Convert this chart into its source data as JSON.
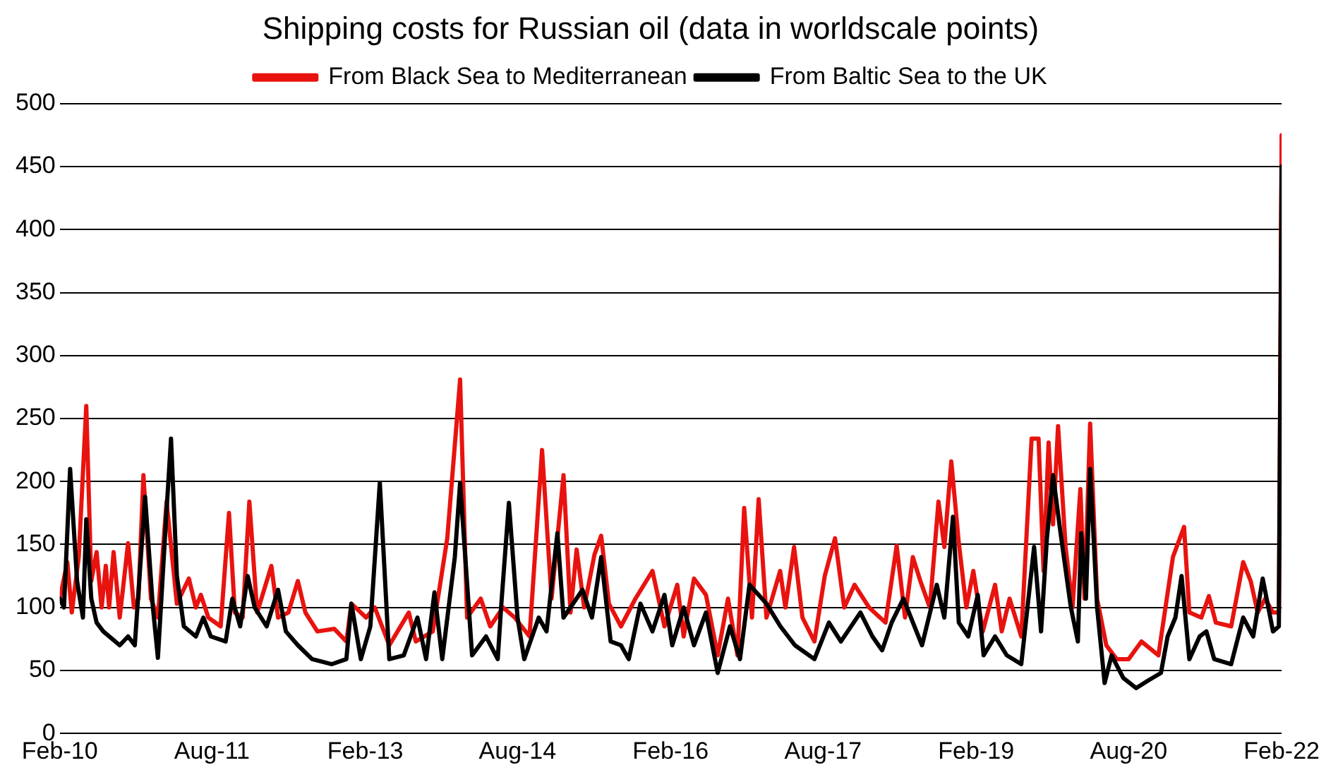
{
  "chart_data": {
    "type": "line",
    "title": "Shipping costs for Russian oil (data in worldscale points)",
    "xlim": [
      "2010-02-01",
      "2022-02-01"
    ],
    "xticks": [
      {
        "value": "2010-02-01",
        "label": "Feb-10"
      },
      {
        "value": "2011-08-01",
        "label": "Aug-11"
      },
      {
        "value": "2013-02-01",
        "label": "Feb-13"
      },
      {
        "value": "2014-08-01",
        "label": "Aug-14"
      },
      {
        "value": "2016-02-01",
        "label": "Feb-16"
      },
      {
        "value": "2017-08-01",
        "label": "Aug-17"
      },
      {
        "value": "2019-02-01",
        "label": "Feb-19"
      },
      {
        "value": "2020-08-01",
        "label": "Aug-20"
      },
      {
        "value": "2022-02-01",
        "label": "Feb-22"
      }
    ],
    "ylim": [
      0,
      500
    ],
    "yticks": [
      0,
      50,
      100,
      150,
      200,
      250,
      300,
      350,
      400,
      450,
      500
    ],
    "grid": "y",
    "legend": "top",
    "marker": "none",
    "line_style": "solid",
    "series": [
      {
        "name": "From Black Sea to Mediterranean",
        "color": "#e8130f",
        "x": [
          "2010-02-01",
          "2010-02-28",
          "2010-03-16",
          "2010-04-10",
          "2010-05-07",
          "2010-05-25",
          "2010-06-13",
          "2010-07-01",
          "2010-07-16",
          "2010-07-28",
          "2010-08-13",
          "2010-09-04",
          "2010-10-04",
          "2010-10-25",
          "2010-11-10",
          "2010-11-28",
          "2010-12-25",
          "2011-01-19",
          "2011-02-19",
          "2011-03-28",
          "2011-05-10",
          "2011-06-04",
          "2011-06-22",
          "2011-07-19",
          "2011-09-01",
          "2011-10-01",
          "2011-10-22",
          "2011-11-19",
          "2011-12-13",
          "2012-01-10",
          "2012-03-01",
          "2012-03-25",
          "2012-05-01",
          "2012-06-04",
          "2012-07-01",
          "2012-08-13",
          "2012-10-13",
          "2012-11-25",
          "2012-12-13",
          "2013-02-04",
          "2013-03-07",
          "2013-04-28",
          "2013-07-07",
          "2013-08-01",
          "2013-10-01",
          "2013-11-22",
          "2014-01-07",
          "2014-02-01",
          "2014-03-22",
          "2014-04-25",
          "2014-06-10",
          "2014-07-22",
          "2014-09-13",
          "2014-10-28",
          "2014-12-01",
          "2015-01-13",
          "2015-02-07",
          "2015-03-01",
          "2015-03-28",
          "2015-05-04",
          "2015-05-28",
          "2015-06-25",
          "2015-08-07",
          "2015-09-28",
          "2015-11-28",
          "2016-01-10",
          "2016-02-25",
          "2016-03-19",
          "2016-04-25",
          "2016-06-07",
          "2016-07-19",
          "2016-08-25",
          "2016-09-28",
          "2016-10-22",
          "2016-11-19",
          "2016-12-13",
          "2017-01-10",
          "2017-02-28",
          "2017-03-19",
          "2017-04-19",
          "2017-05-19",
          "2017-07-01",
          "2017-08-07",
          "2017-09-13",
          "2017-10-16",
          "2017-11-22",
          "2018-01-13",
          "2018-03-13",
          "2018-04-22",
          "2018-05-22",
          "2018-06-19",
          "2018-07-16",
          "2018-08-19",
          "2018-09-19",
          "2018-10-10",
          "2018-11-04",
          "2018-12-01",
          "2018-12-28",
          "2019-01-22",
          "2019-02-25",
          "2019-04-10",
          "2019-05-04",
          "2019-06-01",
          "2019-07-13",
          "2019-08-19",
          "2019-09-13",
          "2019-10-01",
          "2019-10-19",
          "2019-11-04",
          "2019-11-22",
          "2019-12-19",
          "2020-01-13",
          "2020-02-10",
          "2020-02-25",
          "2020-03-16",
          "2020-04-10",
          "2020-05-13",
          "2020-06-19",
          "2020-08-01",
          "2020-09-16",
          "2020-11-16",
          "2021-01-07",
          "2021-02-16",
          "2021-03-07",
          "2021-04-19",
          "2021-05-16",
          "2021-06-10",
          "2021-08-04",
          "2021-09-16",
          "2021-10-13",
          "2021-11-07",
          "2021-12-04",
          "2022-01-01",
          "2022-01-22",
          "2022-02-01"
        ],
        "values": [
          107,
          136,
          96,
          140,
          260,
          121,
          144,
          100,
          133,
          100,
          144,
          92,
          151,
          100,
          107,
          205,
          107,
          92,
          184,
          103,
          123,
          100,
          110,
          92,
          85,
          175,
          96,
          92,
          184,
          96,
          133,
          92,
          96,
          121,
          96,
          81,
          83,
          73,
          103,
          92,
          100,
          70,
          96,
          73,
          81,
          155,
          281,
          92,
          107,
          85,
          100,
          92,
          77,
          225,
          107,
          205,
          96,
          146,
          100,
          142,
          157,
          103,
          85,
          107,
          129,
          85,
          118,
          77,
          123,
          110,
          62,
          107,
          62,
          179,
          92,
          186,
          92,
          129,
          100,
          148,
          92,
          73,
          125,
          155,
          100,
          118,
          100,
          88,
          149,
          92,
          140,
          121,
          100,
          184,
          148,
          216,
          151,
          100,
          129,
          81,
          118,
          81,
          107,
          77,
          234,
          234,
          129,
          231,
          166,
          244,
          148,
          100,
          194,
          107,
          246,
          107,
          70,
          59,
          59,
          73,
          62,
          140,
          164,
          96,
          92,
          109,
          88,
          85,
          136,
          121,
          96,
          107,
          96,
          96,
          475
        ]
      },
      {
        "name": "From Baltic Sea to the UK",
        "color": "#000000",
        "x": [
          "2010-02-01",
          "2010-02-16",
          "2010-03-10",
          "2010-04-04",
          "2010-04-25",
          "2010-05-07",
          "2010-05-25",
          "2010-06-13",
          "2010-07-07",
          "2010-09-04",
          "2010-10-04",
          "2010-10-28",
          "2010-12-04",
          "2011-01-01",
          "2011-01-19",
          "2011-02-16",
          "2011-03-07",
          "2011-03-28",
          "2011-04-22",
          "2011-06-04",
          "2011-07-01",
          "2011-07-28",
          "2011-09-19",
          "2011-10-13",
          "2011-11-10",
          "2011-12-07",
          "2012-01-01",
          "2012-02-13",
          "2012-03-25",
          "2012-04-22",
          "2012-06-04",
          "2012-07-25",
          "2012-10-04",
          "2012-11-25",
          "2012-12-13",
          "2013-01-16",
          "2013-02-19",
          "2013-03-25",
          "2013-04-28",
          "2013-06-19",
          "2013-08-07",
          "2013-09-07",
          "2013-10-07",
          "2013-11-04",
          "2013-12-19",
          "2014-01-07",
          "2014-02-19",
          "2014-04-10",
          "2014-05-22",
          "2014-06-04",
          "2014-07-01",
          "2014-08-01",
          "2014-08-25",
          "2014-10-16",
          "2014-11-13",
          "2014-12-22",
          "2015-01-13",
          "2015-03-22",
          "2015-04-25",
          "2015-05-28",
          "2015-07-01",
          "2015-08-07",
          "2015-09-04",
          "2015-10-16",
          "2015-11-28",
          "2016-01-10",
          "2016-02-07",
          "2016-03-19",
          "2016-04-25",
          "2016-06-07",
          "2016-07-19",
          "2016-09-01",
          "2016-10-07",
          "2016-11-10",
          "2017-01-10",
          "2017-03-01",
          "2017-04-22",
          "2017-07-01",
          "2017-08-22",
          "2017-10-04",
          "2017-12-13",
          "2018-01-25",
          "2018-03-01",
          "2018-04-04",
          "2018-05-16",
          "2018-07-22",
          "2018-09-13",
          "2018-10-10",
          "2018-11-10",
          "2018-12-01",
          "2019-01-04",
          "2019-02-07",
          "2019-02-28",
          "2019-04-10",
          "2019-05-22",
          "2019-07-13",
          "2019-08-28",
          "2019-09-22",
          "2019-10-13",
          "2019-11-04",
          "2019-12-01",
          "2020-01-07",
          "2020-02-01",
          "2020-02-13",
          "2020-03-01",
          "2020-03-16",
          "2020-04-10",
          "2020-05-07",
          "2020-06-01",
          "2020-07-13",
          "2020-08-28",
          "2020-10-10",
          "2020-11-25",
          "2020-12-19",
          "2021-01-16",
          "2021-02-07",
          "2021-03-07",
          "2021-04-13",
          "2021-05-07",
          "2021-06-04",
          "2021-08-04",
          "2021-09-16",
          "2021-10-22",
          "2021-11-25",
          "2022-01-01",
          "2022-01-22",
          "2022-02-01"
        ],
        "values": [
          107,
          100,
          210,
          121,
          92,
          170,
          107,
          88,
          81,
          70,
          77,
          70,
          188,
          100,
          60,
          166,
          234,
          125,
          85,
          77,
          92,
          77,
          73,
          107,
          85,
          125,
          100,
          85,
          114,
          81,
          70,
          59,
          55,
          59,
          103,
          59,
          85,
          199,
          59,
          62,
          92,
          59,
          112,
          59,
          140,
          199,
          62,
          77,
          59,
          103,
          183,
          92,
          59,
          92,
          81,
          159,
          92,
          114,
          92,
          140,
          73,
          70,
          59,
          103,
          81,
          110,
          70,
          100,
          70,
          96,
          48,
          85,
          59,
          118,
          103,
          85,
          70,
          59,
          88,
          73,
          96,
          77,
          66,
          88,
          107,
          70,
          118,
          92,
          172,
          88,
          77,
          110,
          62,
          77,
          62,
          55,
          148,
          81,
          155,
          205,
          159,
          100,
          73,
          159,
          107,
          210,
          100,
          40,
          62,
          44,
          36,
          42,
          48,
          77,
          92,
          125,
          59,
          77,
          81,
          59,
          55,
          92,
          77,
          123,
          81,
          85,
          450
        ]
      }
    ]
  }
}
